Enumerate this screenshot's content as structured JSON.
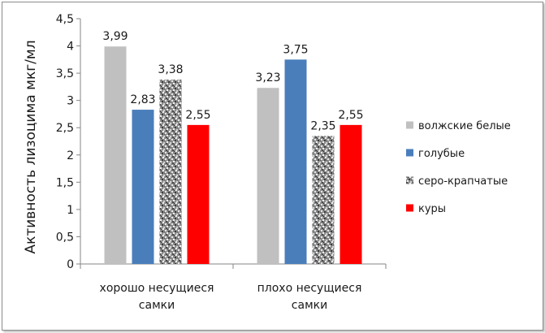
{
  "chart_data": {
    "type": "bar",
    "categories": [
      "хорошо несущиеся самки",
      "плохо несущиеся самки"
    ],
    "category_lines": [
      [
        "хорошо несущиеся",
        "самки"
      ],
      [
        "плохо несущиеся",
        "самки"
      ]
    ],
    "series": [
      {
        "name": "волжские белые",
        "values": [
          3.99,
          3.23
        ],
        "color": "#c0c0c0",
        "pattern": "solid"
      },
      {
        "name": "голубые",
        "values": [
          2.83,
          3.75
        ],
        "color": "#4a7ebb",
        "pattern": "solid"
      },
      {
        "name": "серо-крапчатые",
        "values": [
          3.38,
          2.35
        ],
        "color": "#9a9a9a",
        "pattern": "speckled"
      },
      {
        "name": "куры",
        "values": [
          2.55,
          2.55
        ],
        "color": "#ff0000",
        "pattern": "solid"
      }
    ],
    "data_labels": [
      [
        "3,99",
        "2,83",
        "3,38",
        "2,55"
      ],
      [
        "3,23",
        "3,75",
        "2,35",
        "2,55"
      ]
    ],
    "ylabel": "Активность лизоцима мкг/мл",
    "ylim": [
      0,
      4.5
    ],
    "yticks": [
      "0",
      "0,5",
      "1",
      "1,5",
      "2",
      "2,5",
      "3",
      "3,5",
      "4",
      "4,5"
    ],
    "grid": false,
    "legend_position": "right"
  }
}
